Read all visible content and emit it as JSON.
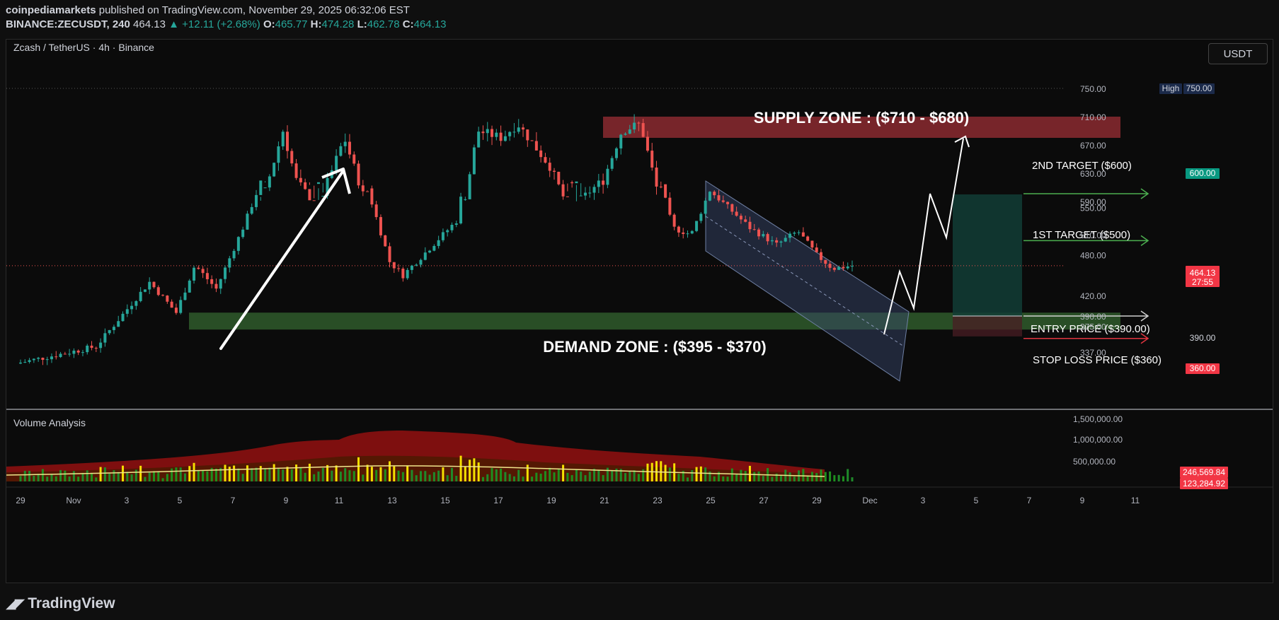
{
  "header": {
    "publisher": "coinpediamarkets",
    "published_text": "published on TradingView.com, November 29, 2025 06:32:06 EST",
    "symbol": "BINANCE:ZECUSDT, 240",
    "last": "464.13",
    "change": "▲ +12.11 (+2.68%)",
    "o_label": "O:",
    "o_value": "465.77",
    "h_label": "H:",
    "h_value": "474.28",
    "l_label": "L:",
    "l_value": "462.78",
    "c_label": "C:",
    "c_value": "464.13"
  },
  "pane": {
    "title": "Zcash / TetherUS · 4h · Binance",
    "currency_button": "USDT",
    "volume_title": "Volume Analysis"
  },
  "footer": {
    "brand": "TradingView"
  },
  "colors": {
    "up": "#26a69a",
    "down": "#ef5350",
    "supply": "#8b2a30",
    "demand": "#2f5a2c",
    "target_line": "#4caf50",
    "stop_line": "#e0343f",
    "channel": "#6e7fa3"
  },
  "chart_data": {
    "type": "candlestick",
    "symbol": "ZECUSDT",
    "timeframe": "4h",
    "y_ticks": [
      337,
      375,
      390,
      420,
      480,
      510,
      550,
      590,
      630,
      670,
      710,
      750
    ],
    "x_ticks": [
      "29",
      "Nov",
      "3",
      "5",
      "7",
      "9",
      "11",
      "13",
      "15",
      "17",
      "19",
      "21",
      "23",
      "25",
      "27",
      "29",
      "Dec",
      "3",
      "5",
      "7",
      "9",
      "11"
    ],
    "price_path": [
      [
        "Oct 29",
        320
      ],
      [
        "Nov 1",
        345
      ],
      [
        "Nov 3",
        440
      ],
      [
        "Nov 4",
        395
      ],
      [
        "Nov 4.7",
        465
      ],
      [
        "Nov 5.5",
        430
      ],
      [
        "Nov 6.5",
        520
      ],
      [
        "Nov 7.3",
        600
      ],
      [
        "Nov 8",
        690
      ],
      [
        "Nov 8.5",
        620
      ],
      [
        "Nov 9.3",
        580
      ],
      [
        "Nov 10.3",
        680
      ],
      [
        "Nov 11",
        600
      ],
      [
        "Nov 12",
        470
      ],
      [
        "Nov 12.5",
        450
      ],
      [
        "Nov 13.5",
        490
      ],
      [
        "Nov 14.5",
        530
      ],
      [
        "Nov 15.3",
        690
      ],
      [
        "Nov 16.2",
        680
      ],
      [
        "Nov 16.8",
        700
      ],
      [
        "Nov 18",
        640
      ],
      [
        "Nov 18.7",
        580
      ],
      [
        "Nov 20",
        620
      ],
      [
        "Nov 20.7",
        690
      ],
      [
        "Nov 21.4",
        700
      ],
      [
        "Nov 22",
        610
      ],
      [
        "Nov 22.6",
        520
      ],
      [
        "Nov 23.3",
        510
      ],
      [
        "Nov 24",
        575
      ],
      [
        "Nov 25.5",
        520
      ],
      [
        "Nov 26.5",
        495
      ],
      [
        "Nov 27.3",
        515
      ],
      [
        "Nov 28",
        480
      ],
      [
        "Nov 28.6",
        460
      ],
      [
        "Nov 29.3",
        464
      ]
    ],
    "high_marker": {
      "label": "High",
      "value": "750.00"
    },
    "price_labels": {
      "last": "464.13",
      "countdown": "27:55",
      "target2": "600.00",
      "entry": "390.00",
      "stop": "360.00"
    },
    "zones": {
      "supply": {
        "label": "SUPPLY ZONE : ($710 - $680)",
        "top": 710,
        "bottom": 680
      },
      "demand": {
        "label": "DEMAND ZONE : ($395 - $370)",
        "top": 395,
        "bottom": 370
      }
    },
    "annotations": {
      "target2": "2ND TARGET ($600)",
      "target1": "1ST TARGET ($500)",
      "entry": "ENTRY PRICE ($390.00)",
      "stop": "STOP LOSS PRICE ($360)"
    },
    "volume": {
      "y_ticks": [
        "1,500,000.00",
        "1,000,000.00",
        "500,000.00"
      ],
      "labels": [
        "246,569.84",
        "123,284.92"
      ]
    }
  }
}
